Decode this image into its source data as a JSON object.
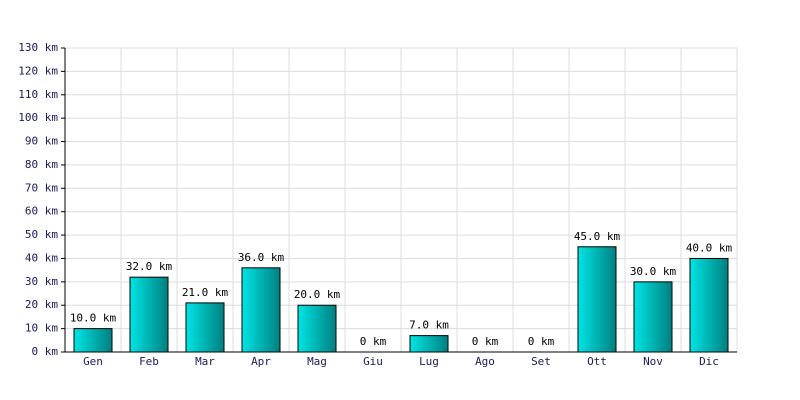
{
  "chart_data": {
    "type": "bar",
    "categories": [
      "Gen",
      "Feb",
      "Mar",
      "Apr",
      "Mag",
      "Giu",
      "Lug",
      "Ago",
      "Set",
      "Ott",
      "Nov",
      "Dic"
    ],
    "values": [
      10,
      32,
      21,
      36,
      20,
      0,
      7,
      0,
      0,
      45,
      30,
      40
    ],
    "value_labels": [
      "10.0 km",
      "32.0 km",
      "21.0 km",
      "36.0 km",
      "20.0 km",
      "0 km",
      "7.0 km",
      "0 km",
      "0 km",
      "45.0 km",
      "30.0 km",
      "40.0 km"
    ],
    "color": "#00e5e5",
    "ylim": [
      0,
      130
    ],
    "yticks": [
      {
        "value": 0,
        "label": "0 km"
      },
      {
        "value": 10,
        "label": "10 km"
      },
      {
        "value": 20,
        "label": "20 km"
      },
      {
        "value": 30,
        "label": "30 km"
      },
      {
        "value": 40,
        "label": "40 km"
      },
      {
        "value": 50,
        "label": "50 km"
      },
      {
        "value": 60,
        "label": "60 km"
      },
      {
        "value": 70,
        "label": "70 km"
      },
      {
        "value": 80,
        "label": "80 km"
      },
      {
        "value": 90,
        "label": "90 km"
      },
      {
        "value": 100,
        "label": "100 km"
      },
      {
        "value": 110,
        "label": "110 km"
      },
      {
        "value": 120,
        "label": "120 km"
      },
      {
        "value": 130,
        "label": "130 km"
      }
    ],
    "grid": true
  }
}
